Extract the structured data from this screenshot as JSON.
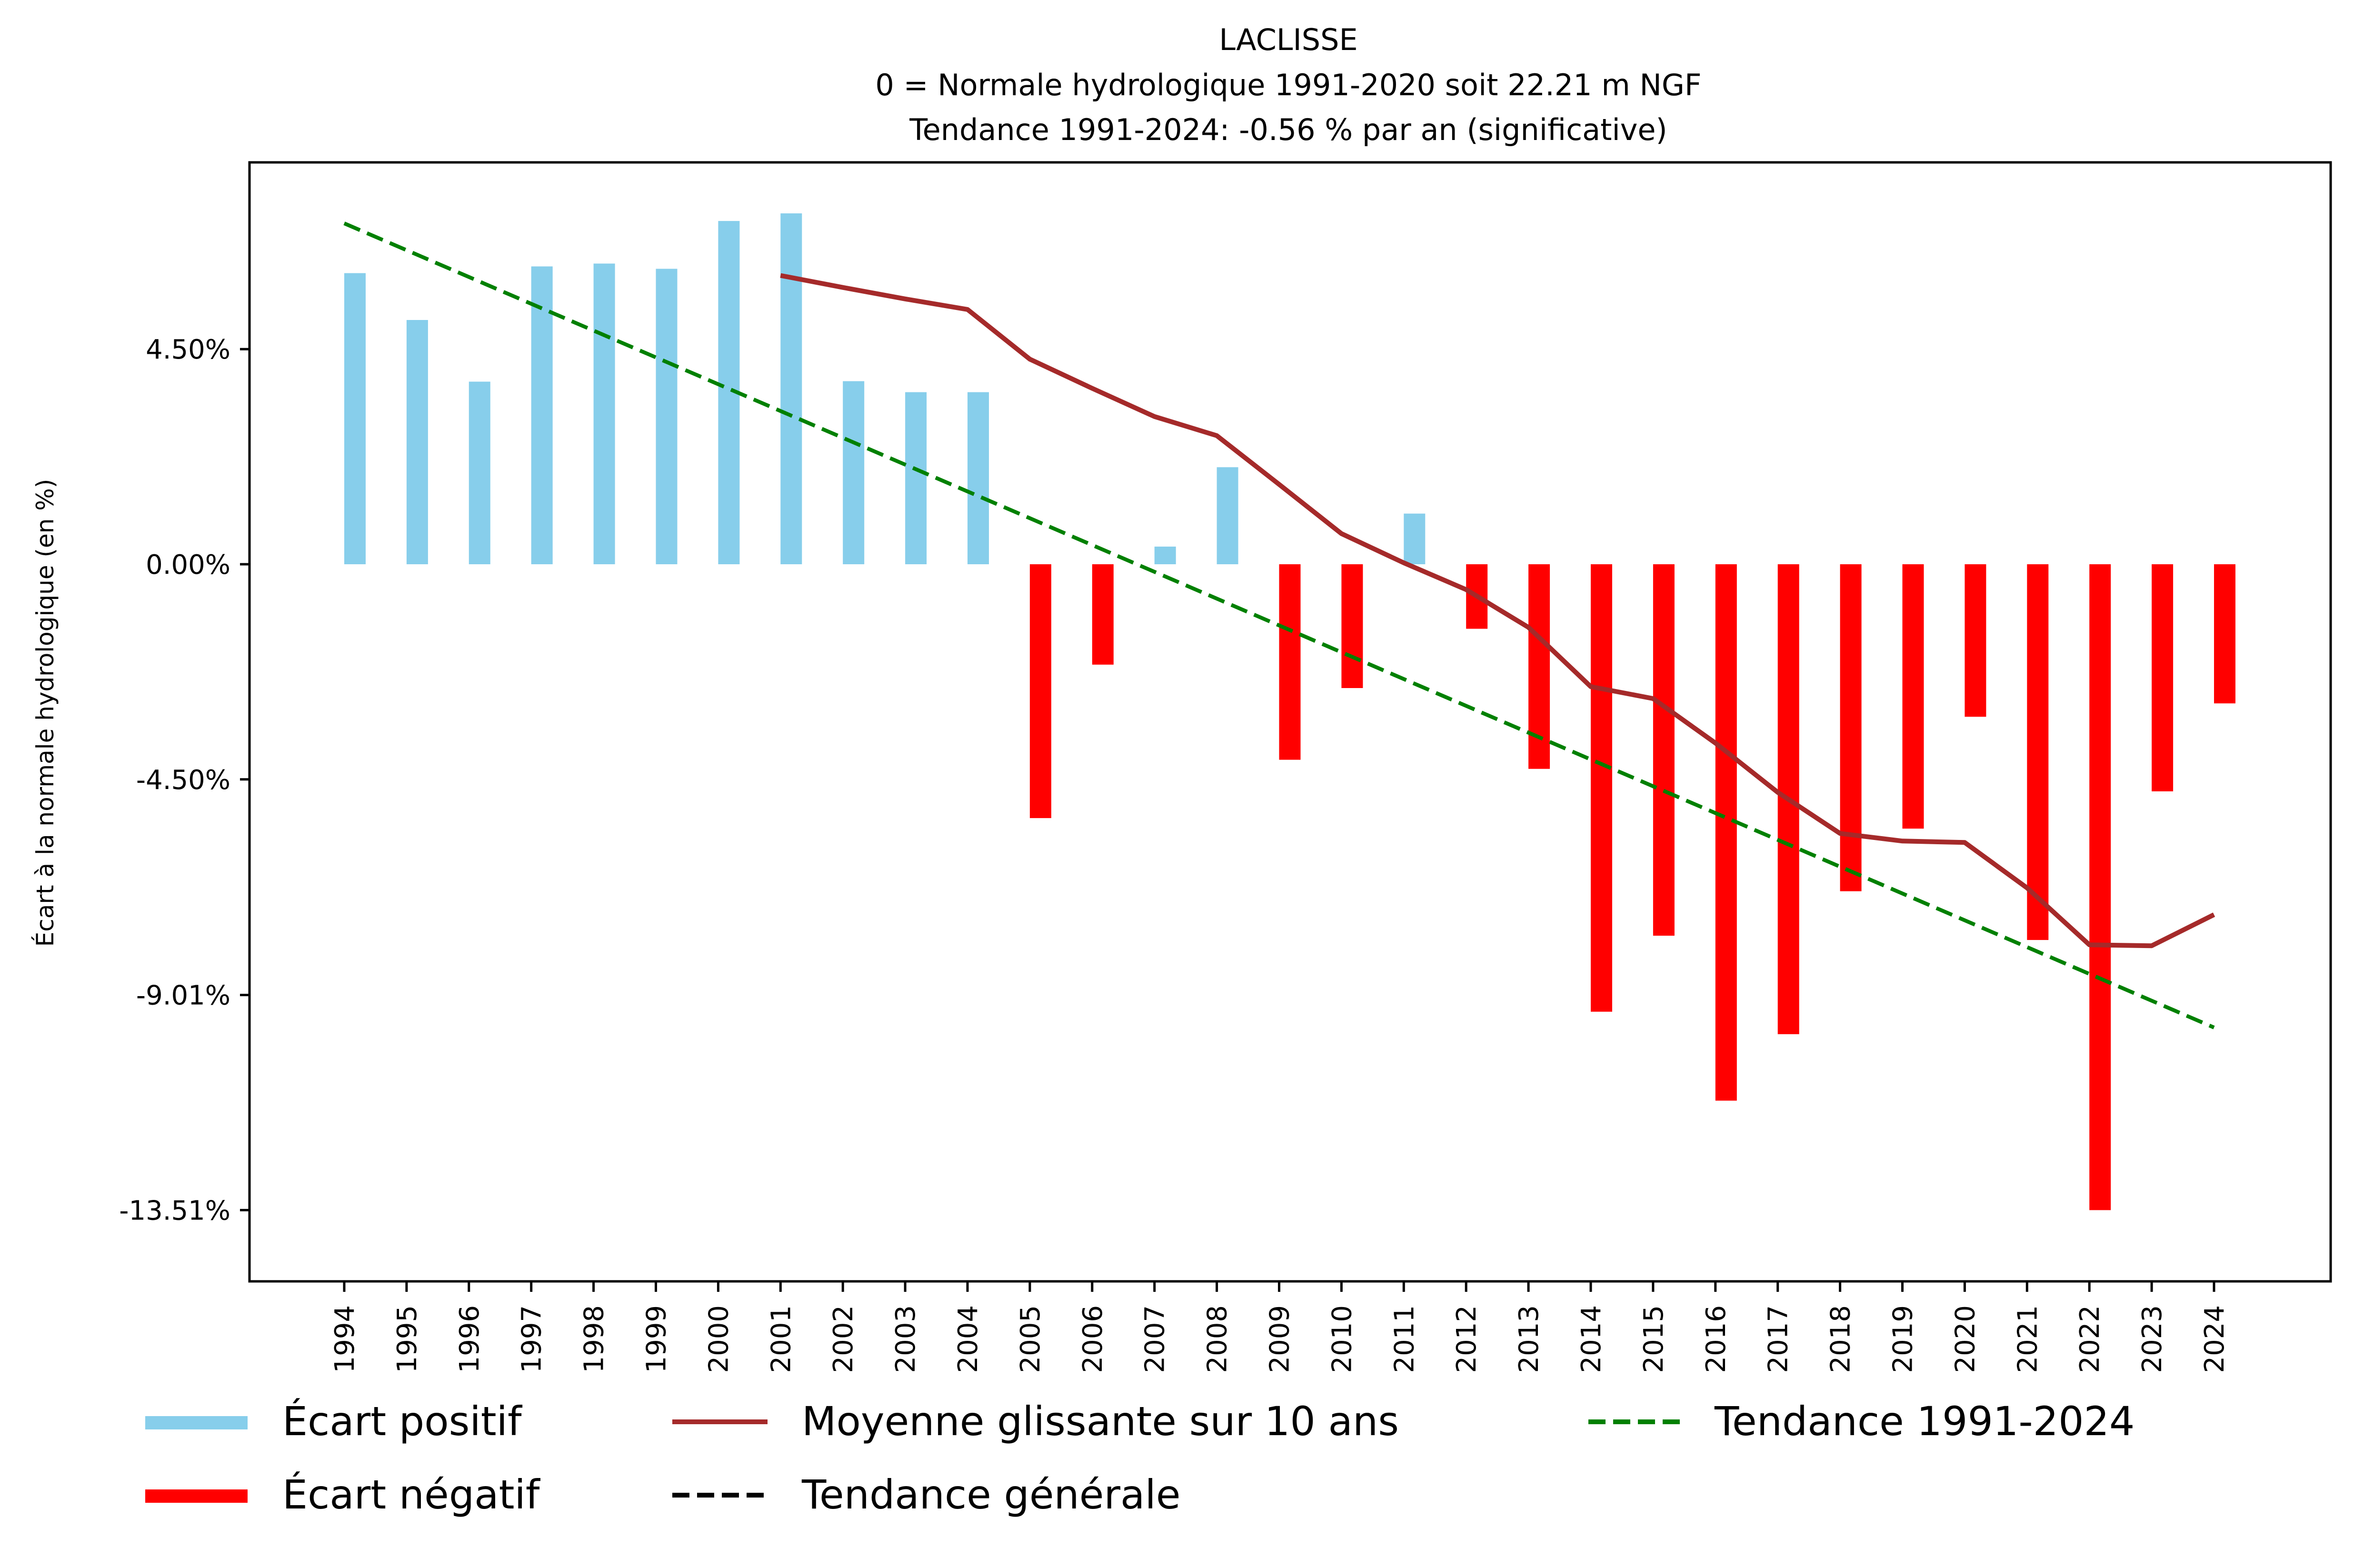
{
  "chart_data": {
    "type": "bar",
    "title": "LACLISSE",
    "subtitle_lines": [
      "0 = Normale hydrologique 1991-2020 soit 22.21 m NGF",
      "Tendance 1991-2024: -0.56 % par an (significative)"
    ],
    "xlabel": "",
    "ylabel": "Écart à la normale hydrologique (en %)",
    "ylim": [
      -14.6,
      8.4
    ],
    "yticks": [
      4.5,
      0.0,
      -4.5,
      -9.01,
      -13.51
    ],
    "ytick_labels": [
      "4.50%",
      "0.00%",
      "-4.50%",
      "-9.01%",
      "-13.51%"
    ],
    "grid": false,
    "legend_position": "bottom",
    "categories": [
      "1994",
      "1995",
      "1996",
      "1997",
      "1998",
      "1999",
      "2000",
      "2001",
      "2002",
      "2003",
      "2004",
      "2005",
      "2006",
      "2007",
      "2008",
      "2009",
      "2010",
      "2011",
      "2012",
      "2013",
      "2014",
      "2015",
      "2016",
      "2017",
      "2018",
      "2019",
      "2020",
      "2021",
      "2022",
      "2023",
      "2024"
    ],
    "series": [
      {
        "name": "Écart (positif / négatif)",
        "kind": "bar",
        "values": [
          6.09,
          5.11,
          3.82,
          6.23,
          6.29,
          6.18,
          7.18,
          7.34,
          3.83,
          3.6,
          3.6,
          -5.31,
          -2.1,
          0.37,
          2.03,
          -4.09,
          -2.59,
          1.06,
          -1.35,
          -4.28,
          -9.36,
          -7.77,
          -11.22,
          -9.83,
          -6.84,
          -5.53,
          -3.19,
          -7.86,
          -13.51,
          -4.75,
          -2.91
        ]
      },
      {
        "name": "Moyenne glissante sur 10 ans",
        "kind": "line",
        "x": [
          "2001",
          "2002",
          "2003",
          "2004",
          "2005",
          "2006",
          "2007",
          "2008",
          "2009",
          "2010",
          "2011",
          "2012",
          "2013",
          "2014",
          "2015",
          "2016",
          "2017",
          "2018",
          "2019",
          "2020",
          "2021",
          "2022",
          "2023",
          "2024"
        ],
        "values": [
          6.04,
          5.79,
          5.55,
          5.33,
          4.29,
          3.68,
          3.09,
          2.69,
          1.67,
          0.64,
          0.03,
          -0.53,
          -1.32,
          -2.56,
          -2.81,
          -3.74,
          -4.77,
          -5.63,
          -5.79,
          -5.82,
          -6.77,
          -7.96,
          -7.98,
          -7.33
        ]
      },
      {
        "name": "Tendance 1991-2024",
        "kind": "trend",
        "x": [
          "1994",
          "2024"
        ],
        "values": [
          7.13,
          -9.69
        ]
      }
    ],
    "legend": [
      {
        "label": "Écart positif",
        "kind": "patch",
        "color": "#87ceeb"
      },
      {
        "label": "Écart négatif",
        "kind": "patch",
        "color": "#ff0000"
      },
      {
        "label": "Moyenne glissante sur 10 ans",
        "kind": "solid",
        "color": "#a52a2a"
      },
      {
        "label": "Tendance générale",
        "kind": "dashed",
        "color": "#000000"
      },
      {
        "label": "Tendance 1991-2024",
        "kind": "dashed",
        "color": "#008000"
      }
    ],
    "colors": {
      "positive": "#87ceeb",
      "negative": "#ff0000",
      "moving_average": "#a52a2a",
      "trend": "#008000"
    }
  }
}
